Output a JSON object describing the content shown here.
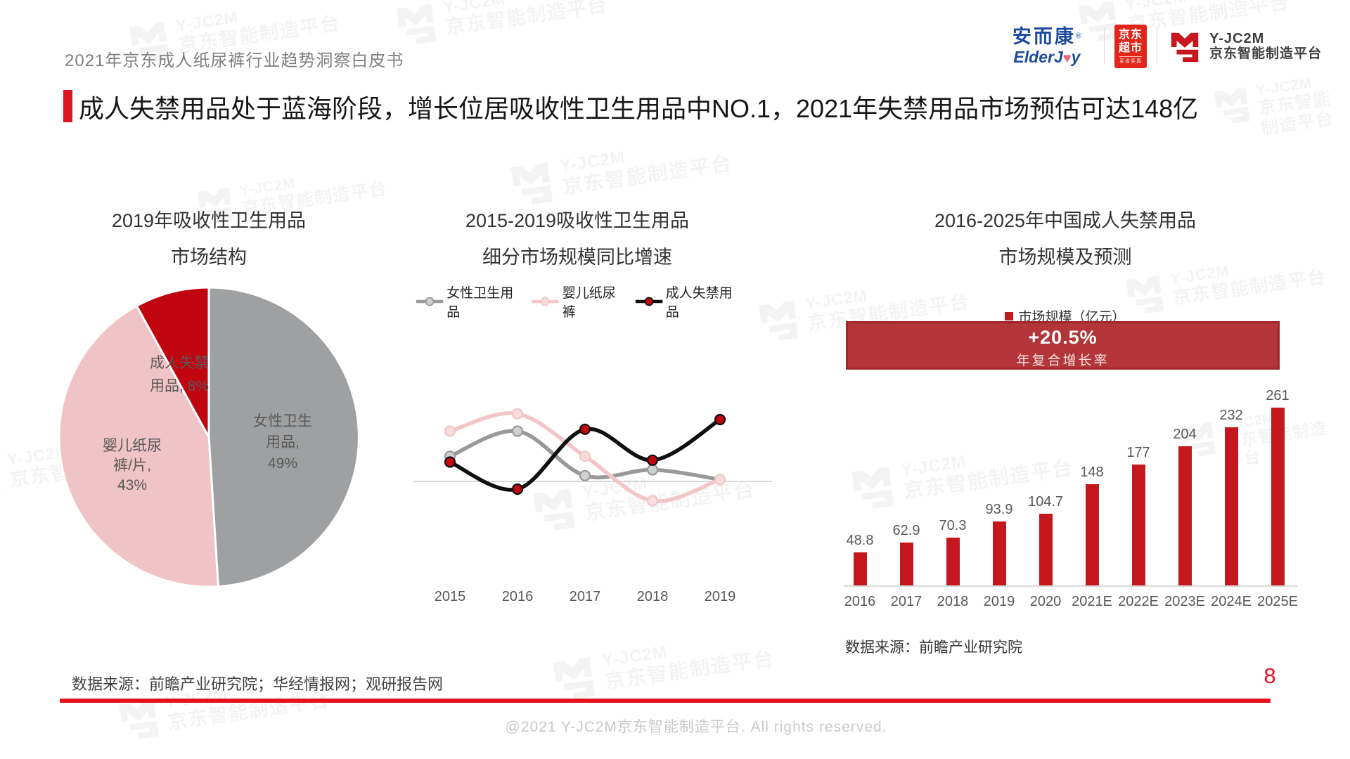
{
  "page": {
    "header": "2021年京东成人纸尿裤行业趋势洞察白皮书",
    "title": "成人失禁用品处于蓝海阶段，增长位居吸收性卫生用品中NO.1，2021年失禁用品市场预估可达148亿",
    "source_note": "数据来源：前瞻产业研究院；华经情报网；观研报告网",
    "page_number": "8",
    "footer": "@2021 Y-JC2M京东智能制造平台. All rights reserved.",
    "accent_red": "#d9161f",
    "line_red": "#e8101c"
  },
  "logos": {
    "elderjoy_cn": "安而康",
    "elderjoy_reg": "®",
    "elderjoy_en_pre": "ElderJ",
    "elderjoy_heart": "♥",
    "elderjoy_en_post": "y",
    "jd_market_l1": "京东",
    "jd_market_l2": "超市",
    "jd_market_sub": "至省至真",
    "yjc2m_name": "Y-JC2M",
    "yjc2m_sub": "京东智能制造平台"
  },
  "watermark": {
    "line1": "Y-JC2M",
    "line2": "京东智能制造平台"
  },
  "chart_data": [
    {
      "type": "pie",
      "title": "2019年吸收性卫生用品市场结构",
      "title_lines": [
        "2019年吸收性卫生用品",
        "市场结构"
      ],
      "start_angle_deg": 0,
      "slices": [
        {
          "label": "女性卫生用品",
          "value": 49,
          "color": "#9fa0a2",
          "label_lines": [
            "女性卫生",
            "用品,",
            "49%"
          ]
        },
        {
          "label": "婴儿纸尿裤/片",
          "value": 43,
          "color": "#f0c3c6",
          "label_lines": [
            "婴儿纸尿",
            "裤/片,",
            "43%"
          ]
        },
        {
          "label": "成人失禁用品",
          "value": 8,
          "color": "#c00511",
          "label_lines": [
            "成人失禁",
            "用品, 8%"
          ]
        }
      ]
    },
    {
      "type": "line",
      "title": "2015-2019吸收性卫生用品细分市场规模同比增速",
      "title_lines": [
        "2015-2019吸收性卫生用品",
        "细分市场规模同比增速"
      ],
      "x": [
        "2015",
        "2016",
        "2017",
        "2018",
        "2019"
      ],
      "series": [
        {
          "name": "女性卫生用品",
          "color": "#999999",
          "marker_fill": "#d0d0d0",
          "values_pct_est": [
            6.5,
            13,
            1.5,
            3,
            0.5
          ]
        },
        {
          "name": "婴儿纸尿裤",
          "color": "#f2c6c8",
          "marker_fill": "#f7dddd",
          "values_pct_est": [
            13,
            17.5,
            6.5,
            -5,
            0.5
          ]
        },
        {
          "name": "成人失禁用品",
          "color": "#0f0f0f",
          "marker_fill": "#c00511",
          "values_pct_est": [
            5,
            -2,
            13.5,
            5.5,
            16
          ]
        }
      ],
      "ylim": [
        -10,
        22
      ],
      "grid": false,
      "legend_position": "top",
      "note": "y-axis unlabeled; values estimated from zero baseline"
    },
    {
      "type": "bar",
      "title": "2016-2025年中国成人失禁用品市场规模及预测",
      "title_lines": [
        "2016-2025年中国成人失禁用品",
        "市场规模及预测"
      ],
      "legend": "市场规模（亿元）",
      "cagr": {
        "line1": "+20.5%",
        "line2": "年复合增长率"
      },
      "categories": [
        "2016",
        "2017",
        "2018",
        "2019",
        "2020",
        "2021E",
        "2022E",
        "2023E",
        "2024E",
        "2025E"
      ],
      "values": [
        48.8,
        62.9,
        70.3,
        93.9,
        104.7,
        148,
        177,
        204,
        232,
        261
      ],
      "bar_color": "#c5171e",
      "ylim": [
        0,
        280
      ],
      "grid": false,
      "source": "数据来源：前瞻产业研究院"
    }
  ]
}
